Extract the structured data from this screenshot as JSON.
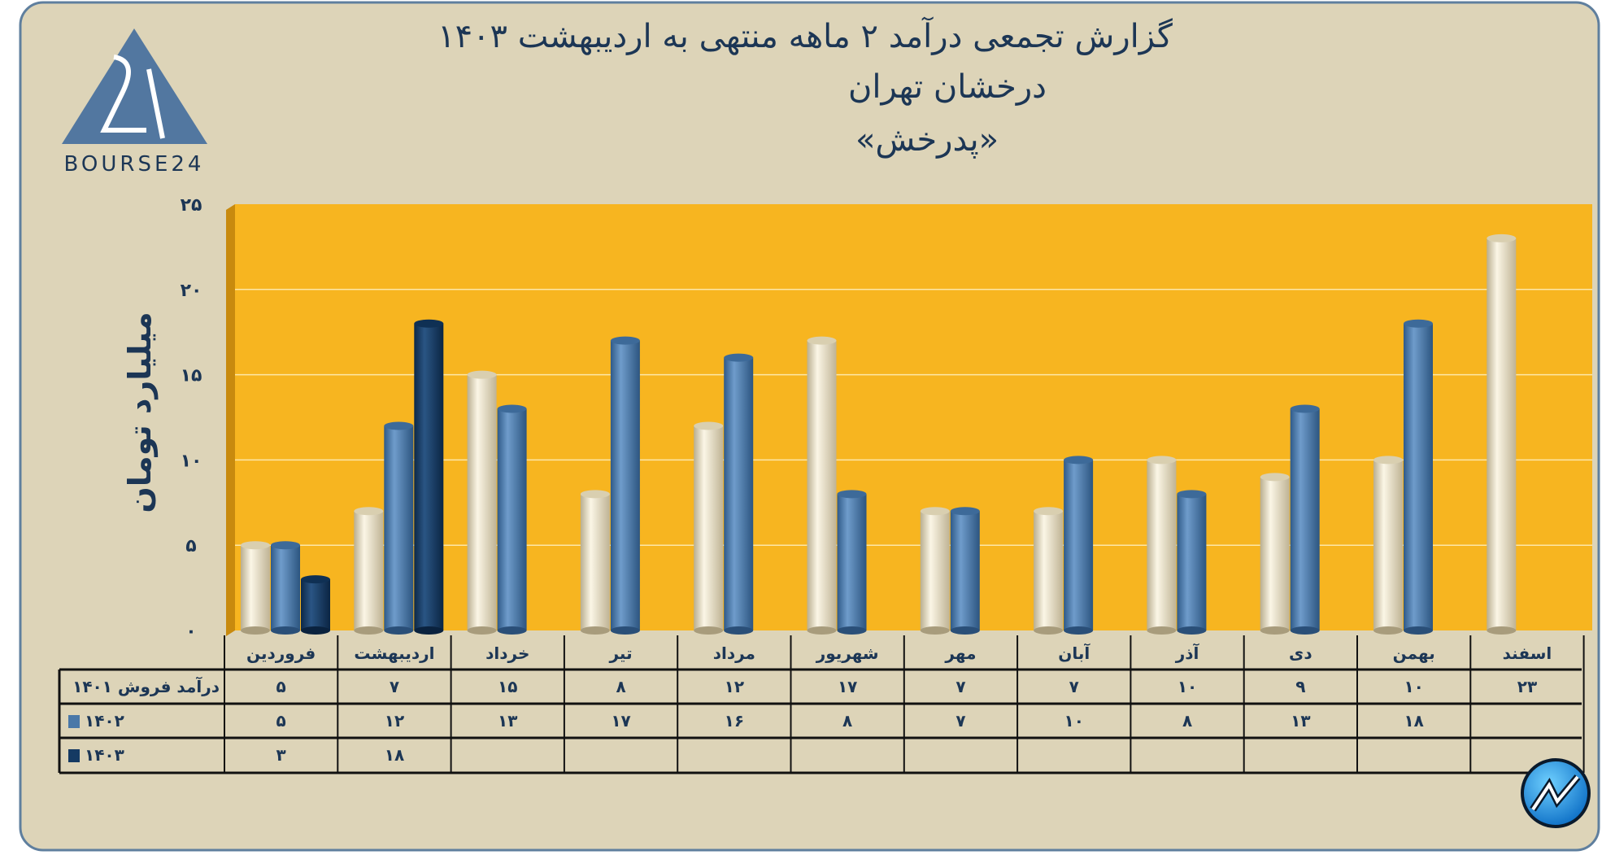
{
  "header": {
    "title_line1": "گزارش تجمعی درآمد ۲ ماهه منتهی به اردیبهشت ۱۴۰۳",
    "title_line2": "درخشان تهران",
    "title_line3": "«پدرخش»"
  },
  "logo": {
    "text": "BOURSE24",
    "icon": "bourse24-triangle-logo"
  },
  "watermark_icon": "trend-arrow-circle-logo",
  "colors": {
    "background": "#ddd4b8",
    "plot_background": "#f7b520",
    "series_1401": "#e9e0c6",
    "series_1402": "#4a78a8",
    "series_1403": "#153a63",
    "text": "#1c3655"
  },
  "chart_data": {
    "type": "bar",
    "title": "گزارش تجمعی درآمد ۲ ماهه منتهی به اردیبهشت ۱۴۰۳",
    "ylabel": "میلیارد تومان",
    "xlabel": "",
    "ylim": [
      0,
      25
    ],
    "yticks": [
      0,
      5,
      10,
      15,
      20,
      25
    ],
    "grid": true,
    "legend": "table-left",
    "categories": [
      "فروردین",
      "اردیبهشت",
      "خرداد",
      "تیر",
      "مرداد",
      "شهریور",
      "مهر",
      "آبان",
      "آذر",
      "دی",
      "بهمن",
      "اسفند"
    ],
    "series": [
      {
        "name": "درآمد فروش ۱۴۰۱",
        "color": "#e9e0c6",
        "values": [
          5,
          7,
          15,
          8,
          12,
          17,
          7,
          7,
          10,
          9,
          10,
          23
        ]
      },
      {
        "name": "۱۴۰۲",
        "color": "#4a78a8",
        "values": [
          5,
          12,
          13,
          17,
          16,
          8,
          7,
          10,
          8,
          13,
          18,
          null
        ]
      },
      {
        "name": "۱۴۰۳",
        "color": "#153a63",
        "values": [
          3,
          18,
          null,
          null,
          null,
          null,
          null,
          null,
          null,
          null,
          null,
          null
        ]
      }
    ]
  }
}
